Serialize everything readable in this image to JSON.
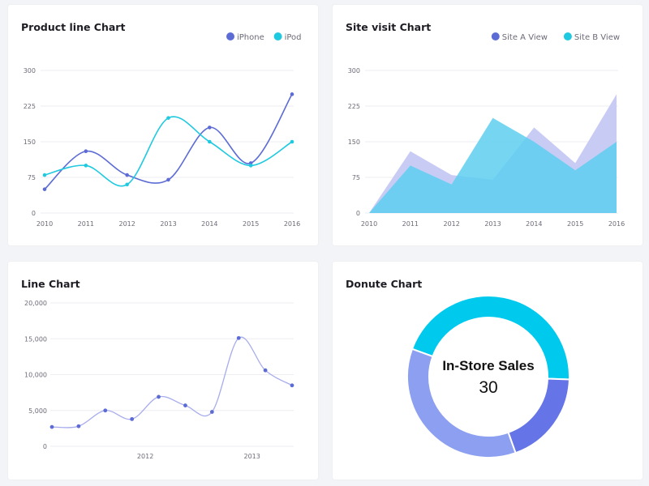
{
  "cards": {
    "product": {
      "title": "Product line Chart"
    },
    "site": {
      "title": "Site visit Chart"
    },
    "line": {
      "title": "Line Chart"
    },
    "donut": {
      "title": "Donute Chart"
    }
  },
  "colors": {
    "blue": "#5d6cd5",
    "cyan": "#1fc9e0",
    "area_blue": "#c5c8f3",
    "area_cyan": "#5ecff0",
    "light_line": "#a7acec",
    "donut_cyan": "#00c9ee",
    "donut_blue": "#6574e6",
    "donut_light": "#8c9ff0"
  },
  "chart_data": [
    {
      "id": "product",
      "type": "line",
      "title": "Product line Chart",
      "x": [
        "2010",
        "2011",
        "2012",
        "2013",
        "2014",
        "2015",
        "2016"
      ],
      "series": [
        {
          "name": "iPhone",
          "values": [
            50,
            130,
            80,
            70,
            180,
            105,
            250
          ]
        },
        {
          "name": "iPod",
          "values": [
            80,
            100,
            60,
            200,
            150,
            100,
            150
          ]
        }
      ],
      "yticks": [
        "0",
        "75",
        "150",
        "225",
        "300"
      ],
      "ylim": [
        0,
        300
      ],
      "legend": "top-right"
    },
    {
      "id": "site",
      "type": "area",
      "title": "Site visit Chart",
      "x": [
        "2010",
        "2011",
        "2012",
        "2013",
        "2014",
        "2015",
        "2016"
      ],
      "series": [
        {
          "name": "Site A View",
          "values": [
            0,
            130,
            80,
            70,
            180,
            105,
            250
          ]
        },
        {
          "name": "Site B View",
          "values": [
            0,
            100,
            60,
            200,
            150,
            90,
            150
          ]
        }
      ],
      "yticks": [
        "0",
        "75",
        "150",
        "225",
        "300"
      ],
      "ylim": [
        0,
        300
      ],
      "legend": "top-right"
    },
    {
      "id": "line",
      "type": "line",
      "title": "Line Chart",
      "x_labels": [
        "2012",
        "2013"
      ],
      "series": [
        {
          "values": [
            2700,
            2800,
            5000,
            3800,
            6900,
            5700,
            4800,
            15100,
            10600,
            8500
          ]
        }
      ],
      "yticks": [
        "0",
        "5,000",
        "10,000",
        "15,000",
        "20,000"
      ],
      "ylim": [
        0,
        20000
      ]
    },
    {
      "id": "donut",
      "type": "pie",
      "title": "Donute Chart",
      "center_label": "In-Store Sales",
      "center_value": "30",
      "slices": [
        {
          "value": 45
        },
        {
          "value": 19
        },
        {
          "value": 36
        }
      ]
    }
  ]
}
